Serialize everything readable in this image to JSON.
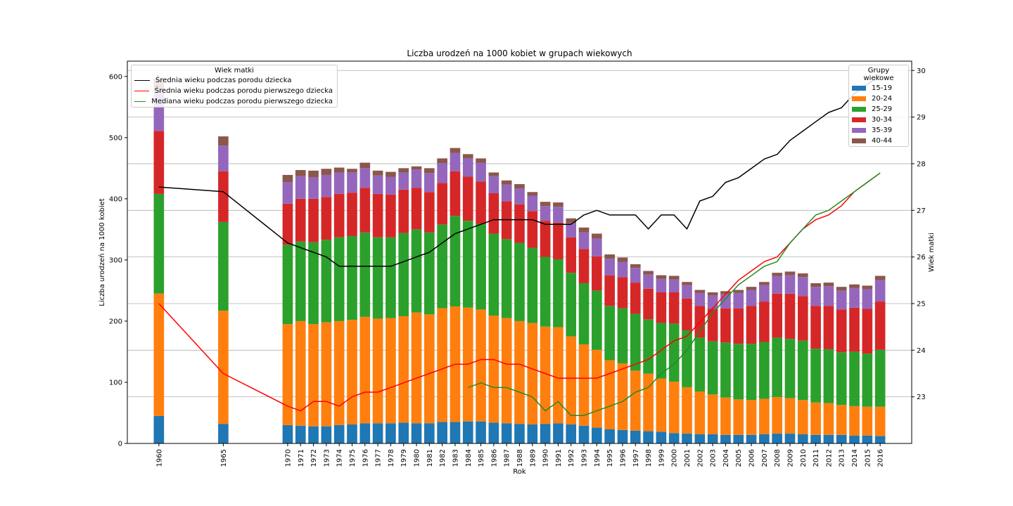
{
  "chart_data": {
    "type": "bar",
    "title": "Liczba urodzeń na 1000 kobiet w grupach wiekowych",
    "xlabel": "Rok",
    "ylabel": "Liczba urodzeń na 1000 kobiet",
    "ylabel_right": "Wiek matki",
    "ylim": [
      0,
      625
    ],
    "ylim_right": [
      22.0,
      30.2
    ],
    "yticks": [
      0,
      100,
      200,
      300,
      400,
      500,
      600
    ],
    "yticks_right": [
      23,
      24,
      25,
      26,
      27,
      28,
      29,
      30
    ],
    "grid": "horizontal, right axis",
    "categories": [
      1960,
      1965,
      1970,
      1971,
      1972,
      1973,
      1974,
      1975,
      1976,
      1977,
      1978,
      1979,
      1980,
      1981,
      1982,
      1983,
      1984,
      1985,
      1986,
      1987,
      1988,
      1989,
      1990,
      1991,
      1992,
      1993,
      1994,
      1995,
      1996,
      1997,
      1998,
      1999,
      2000,
      2001,
      2002,
      2003,
      2004,
      2005,
      2006,
      2007,
      2008,
      2009,
      2010,
      2011,
      2012,
      2013,
      2014,
      2015,
      2016
    ],
    "bar_legend_title": "Grupy wiekowe",
    "bar_legend_position": "top-right",
    "series": [
      {
        "name": "15-19",
        "color": "#1f77b4",
        "values": [
          45,
          32,
          30,
          29,
          28,
          28,
          30,
          31,
          33,
          33,
          33,
          34,
          33,
          33,
          35,
          35,
          36,
          36,
          34,
          33,
          32,
          31,
          32,
          33,
          31,
          29,
          26,
          23,
          22,
          21,
          20,
          19,
          17,
          16,
          15,
          15,
          14,
          14,
          14,
          15,
          16,
          16,
          15,
          14,
          14,
          14,
          13,
          13,
          12
        ]
      },
      {
        "name": "20-24",
        "color": "#ff7f0e",
        "values": [
          200,
          185,
          165,
          171,
          167,
          170,
          170,
          171,
          174,
          171,
          172,
          174,
          181,
          178,
          186,
          189,
          186,
          183,
          175,
          172,
          168,
          166,
          159,
          157,
          144,
          133,
          127,
          113,
          109,
          98,
          94,
          87,
          84,
          76,
          70,
          65,
          61,
          58,
          57,
          58,
          60,
          58,
          56,
          53,
          52,
          49,
          48,
          47,
          48
        ]
      },
      {
        "name": "25-29",
        "color": "#2ca02c",
        "values": [
          163,
          145,
          130,
          130,
          134,
          135,
          137,
          137,
          138,
          133,
          132,
          136,
          136,
          134,
          137,
          148,
          142,
          140,
          134,
          129,
          128,
          123,
          114,
          111,
          104,
          100,
          97,
          89,
          90,
          93,
          89,
          91,
          95,
          93,
          88,
          87,
          90,
          91,
          92,
          93,
          97,
          97,
          97,
          88,
          88,
          86,
          89,
          87,
          93
        ]
      },
      {
        "name": "30-34",
        "color": "#d62728",
        "values": [
          103,
          83,
          67,
          70,
          71,
          70,
          71,
          71,
          73,
          71,
          70,
          71,
          68,
          66,
          68,
          73,
          72,
          69,
          66,
          62,
          63,
          60,
          59,
          60,
          58,
          56,
          56,
          50,
          51,
          51,
          50,
          50,
          51,
          52,
          52,
          53,
          56,
          58,
          62,
          66,
          72,
          74,
          73,
          70,
          71,
          70,
          72,
          73,
          79
        ]
      },
      {
        "name": "35-39",
        "color": "#9467bd",
        "values": [
          65,
          42,
          35,
          37,
          35,
          36,
          35,
          33,
          32,
          30,
          29,
          28,
          30,
          31,
          32,
          30,
          30,
          31,
          28,
          27,
          26,
          25,
          24,
          26,
          23,
          27,
          29,
          27,
          25,
          24,
          23,
          22,
          21,
          22,
          21,
          22,
          23,
          25,
          26,
          27,
          29,
          30,
          31,
          31,
          32,
          31,
          32,
          32,
          35
        ]
      },
      {
        "name": "40-44",
        "color": "#8c564b",
        "values": [
          20,
          15,
          12,
          10,
          11,
          10,
          8,
          6,
          9,
          8,
          8,
          7,
          5,
          8,
          8,
          8,
          7,
          7,
          6,
          7,
          7,
          6,
          7,
          7,
          8,
          8,
          8,
          7,
          7,
          6,
          6,
          6,
          6,
          5,
          5,
          5,
          5,
          5,
          5,
          5,
          5,
          6,
          6,
          6,
          6,
          6,
          6,
          6,
          7
        ]
      }
    ],
    "line_legend_title": "Wiek matki",
    "line_legend_position": "top-left",
    "lines": [
      {
        "name": "Średnia wieku podczas porodu dziecka",
        "color": "#000000",
        "axis": "right",
        "x": [
          1960,
          1965,
          1970,
          1971,
          1972,
          1973,
          1974,
          1975,
          1976,
          1977,
          1978,
          1979,
          1980,
          1981,
          1982,
          1983,
          1984,
          1985,
          1986,
          1987,
          1988,
          1989,
          1990,
          1991,
          1992,
          1993,
          1994,
          1995,
          1996,
          1997,
          1998,
          1999,
          2000,
          2001,
          2002,
          2003,
          2004,
          2005,
          2006,
          2007,
          2008,
          2009,
          2010,
          2011,
          2012,
          2013,
          2014,
          2015,
          2016
        ],
        "values": [
          27.5,
          27.4,
          26.3,
          26.2,
          26.1,
          26.0,
          25.8,
          25.8,
          25.8,
          25.8,
          25.8,
          25.9,
          26.0,
          26.1,
          26.3,
          26.5,
          26.6,
          26.7,
          26.8,
          26.8,
          26.8,
          26.8,
          26.7,
          26.7,
          26.7,
          26.9,
          27.0,
          26.9,
          26.9,
          26.9,
          26.6,
          26.9,
          26.9,
          26.6,
          27.2,
          27.3,
          27.6,
          27.7,
          27.9,
          28.1,
          28.2,
          28.5,
          28.7,
          28.9,
          29.1,
          29.2,
          29.5,
          29.7,
          29.9
        ]
      },
      {
        "name": "Średnia wieku podczas porodu pierwszego dziecka",
        "color": "#ff0000",
        "axis": "right",
        "x": [
          1960,
          1965,
          1970,
          1971,
          1972,
          1973,
          1974,
          1975,
          1976,
          1977,
          1978,
          1979,
          1980,
          1981,
          1982,
          1983,
          1984,
          1985,
          1986,
          1987,
          1988,
          1989,
          1990,
          1991,
          1992,
          1993,
          1994,
          1995,
          1996,
          1997,
          1998,
          1999,
          2000,
          2001,
          2002,
          2003,
          2004,
          2005,
          2006,
          2007,
          2008,
          2009,
          2010,
          2011,
          2012,
          2013,
          2014,
          2015,
          2016
        ],
        "values": [
          25.0,
          23.5,
          22.8,
          22.7,
          22.9,
          22.9,
          22.8,
          23.0,
          23.1,
          23.1,
          23.2,
          23.3,
          23.4,
          23.5,
          23.6,
          23.7,
          23.7,
          23.8,
          23.8,
          23.7,
          23.7,
          23.6,
          23.5,
          23.4,
          23.4,
          23.4,
          23.4,
          23.5,
          23.6,
          23.7,
          23.8,
          24.0,
          24.2,
          24.3,
          24.6,
          24.9,
          25.2,
          25.5,
          25.7,
          25.9,
          26.0,
          26.3,
          26.6,
          26.8,
          26.9,
          27.1,
          27.4,
          27.6,
          27.8
        ]
      },
      {
        "name": "Mediana wieku podczas porodu pierwszego dziecka",
        "color": "#228b22",
        "axis": "right",
        "x": [
          1984,
          1985,
          1986,
          1987,
          1988,
          1989,
          1990,
          1991,
          1992,
          1993,
          1994,
          1995,
          1996,
          1997,
          1998,
          1999,
          2000,
          2001,
          2002,
          2003,
          2004,
          2005,
          2006,
          2007,
          2008,
          2009,
          2010,
          2011,
          2012,
          2013,
          2014,
          2015,
          2016
        ],
        "values": [
          23.2,
          23.3,
          23.2,
          23.2,
          23.1,
          23.0,
          22.7,
          22.9,
          22.6,
          22.6,
          22.7,
          22.8,
          22.9,
          23.1,
          23.2,
          23.5,
          23.7,
          24.0,
          24.4,
          24.8,
          25.1,
          25.4,
          25.6,
          25.8,
          25.9,
          26.3,
          26.6,
          26.9,
          27.0,
          27.2,
          27.4,
          27.6,
          27.8
        ]
      }
    ]
  }
}
